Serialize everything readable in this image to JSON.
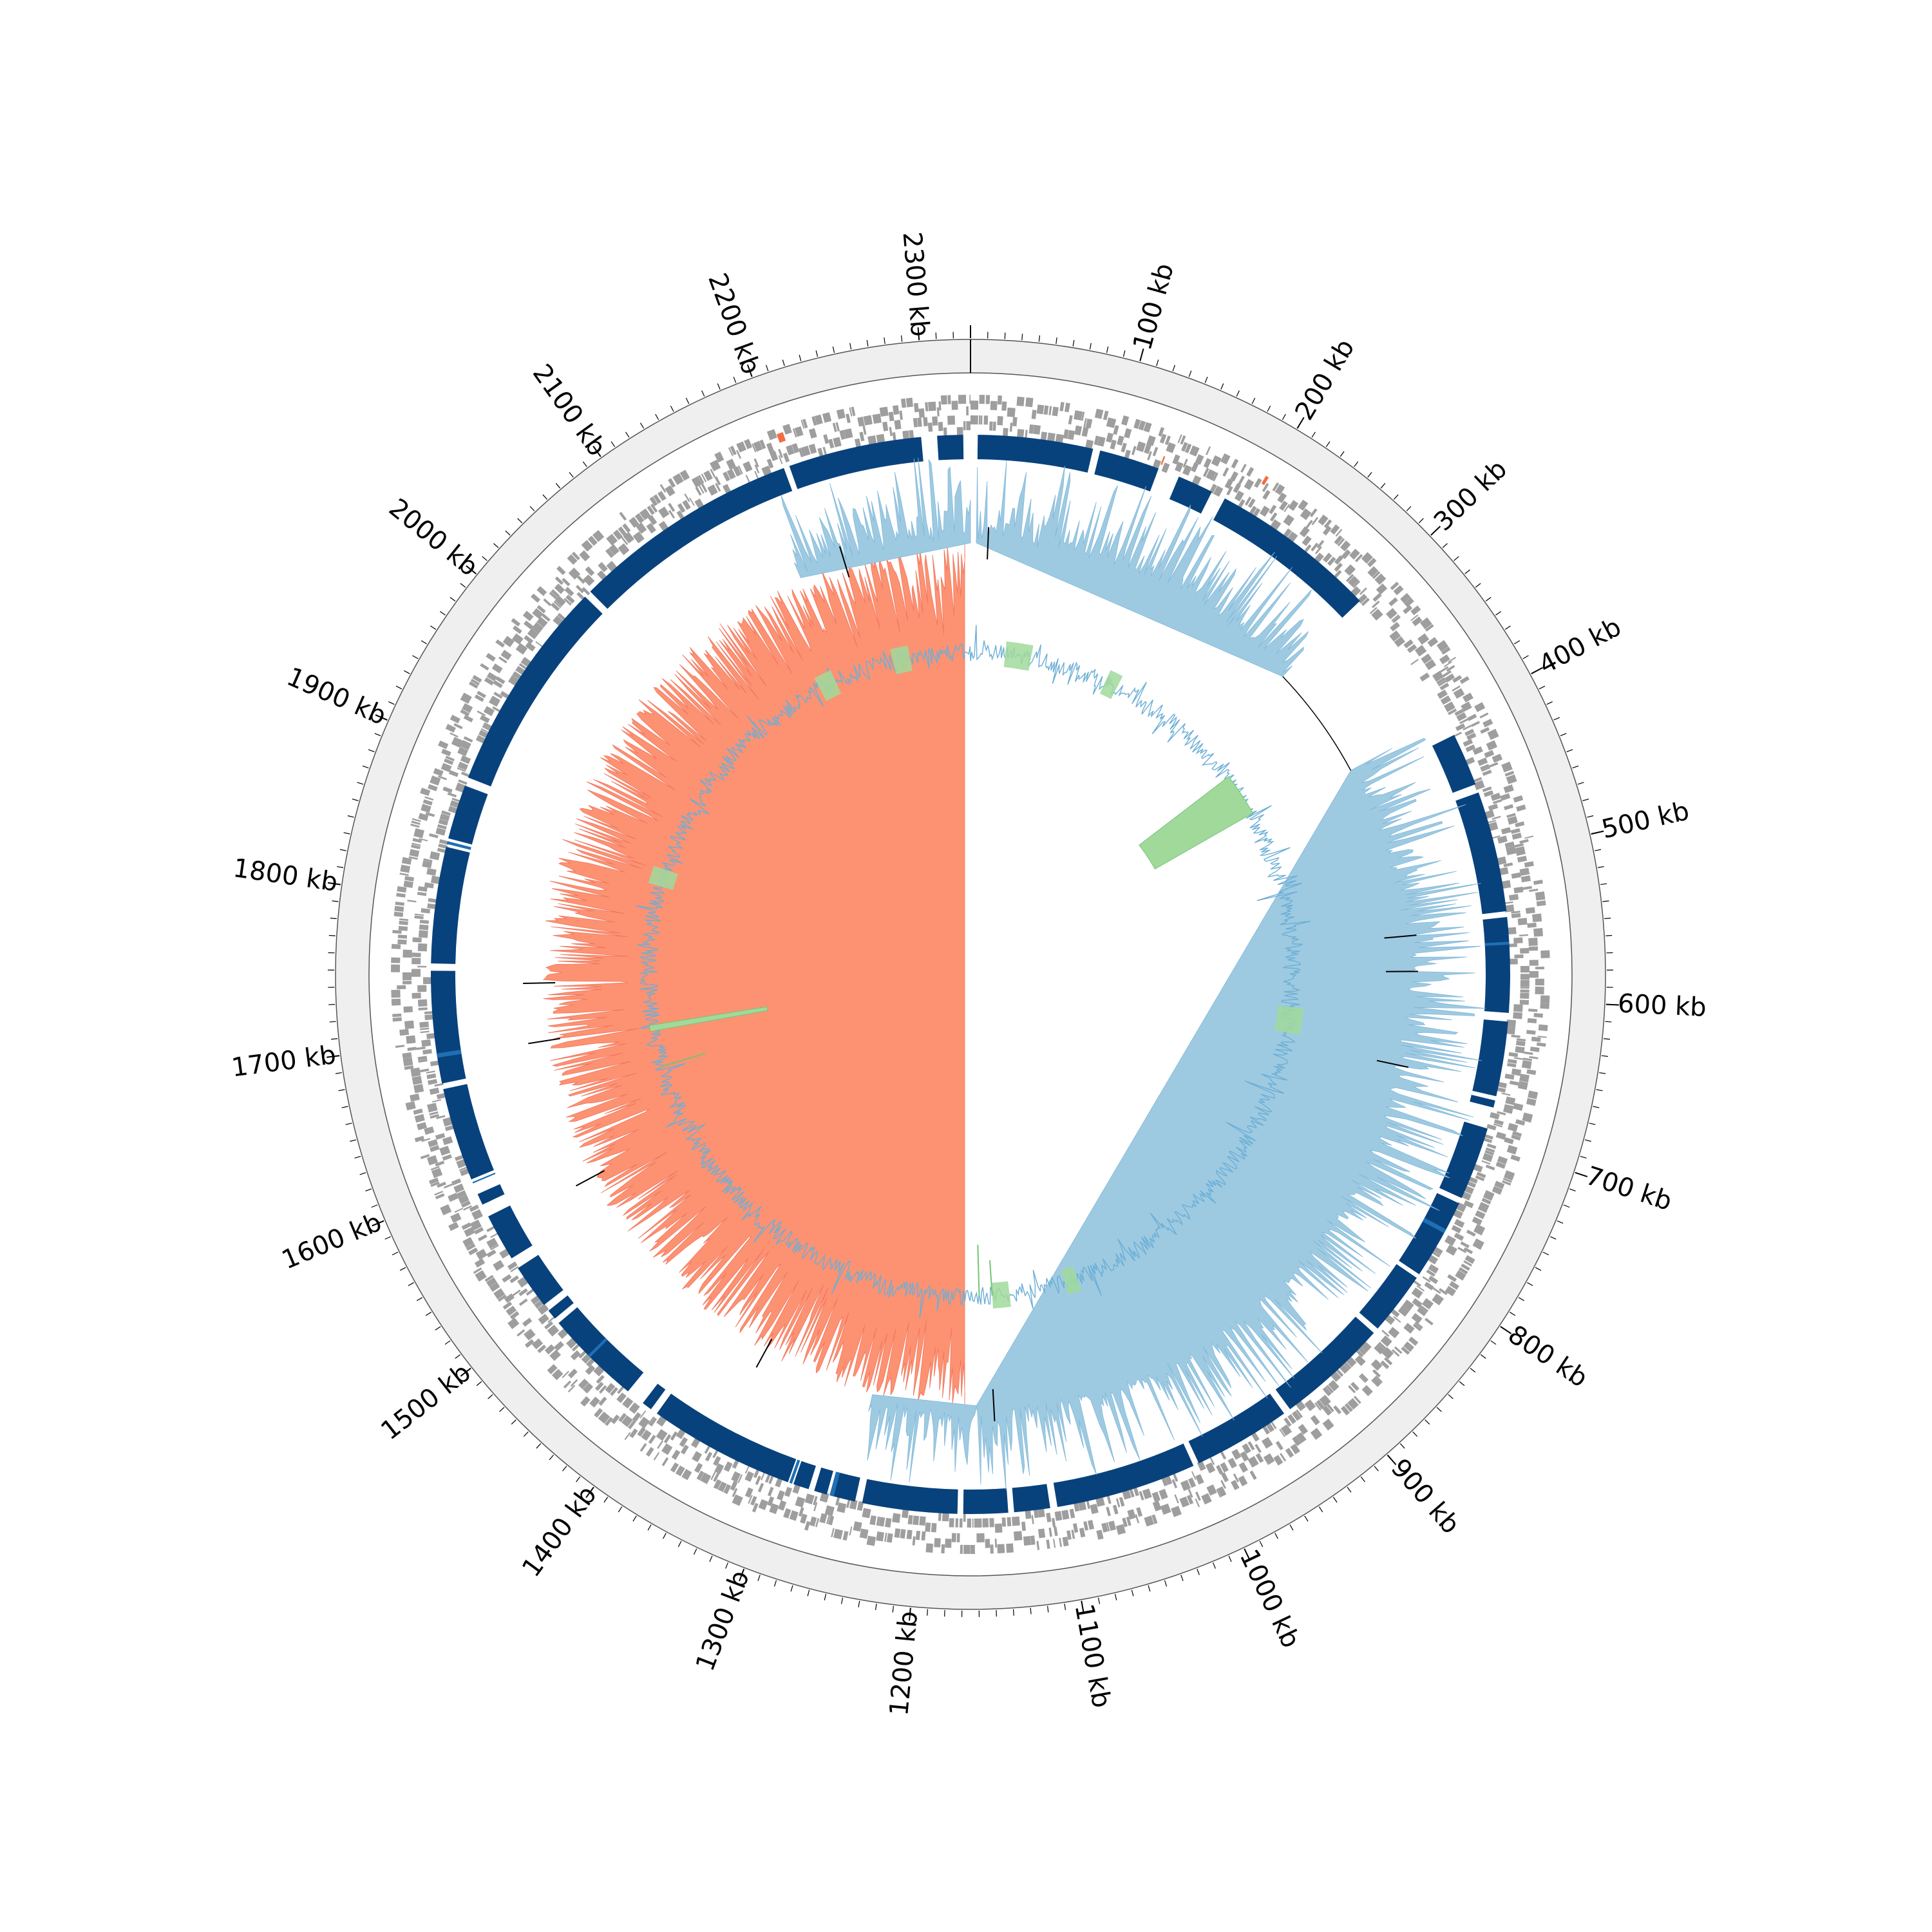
{
  "chart_data": {
    "type": "circular-genome-map",
    "title": "",
    "genome_length_kb": 2330,
    "tick_labels": [
      "100 kb",
      "200 kb",
      "300 kb",
      "400 kb",
      "500 kb",
      "600 kb",
      "700 kb",
      "800 kb",
      "900 kb",
      "1000 kb",
      "1100 kb",
      "1200 kb",
      "1300 kb",
      "1400 kb",
      "1500 kb",
      "1600 kb",
      "1700 kb",
      "1800 kb",
      "1900 kb",
      "2000 kb",
      "2100 kb",
      "2200 kb",
      "2300 kb"
    ],
    "tick_positions_kb": [
      100,
      200,
      300,
      400,
      500,
      600,
      700,
      800,
      900,
      1000,
      1100,
      1200,
      1300,
      1400,
      1500,
      1600,
      1700,
      1800,
      1900,
      2000,
      2100,
      2200,
      2300
    ],
    "colors": {
      "ring_fill": "#efefef",
      "ring_stroke": "#555555",
      "genes": "#9e9e9e",
      "genes_highlight": "#f46d43",
      "contigs": "#08427d",
      "contig_highlight": "#1f6fb4",
      "gc_skew_positive": "#9ecae1",
      "gc_skew_negative": "#fc9272",
      "gc_content_base": "#9ecae1",
      "gc_content_high": "#a1d99b",
      "mark": "#000000"
    },
    "contig_blocks_kb": [
      [
        2307,
        2325
      ],
      [
        5,
        85
      ],
      [
        90,
        132
      ],
      [
        147,
        172
      ],
      [
        182,
        299
      ],
      [
        412,
        449
      ],
      [
        455,
        539
      ],
      [
        543,
        609
      ],
      [
        615,
        667
      ],
      [
        670,
        675
      ],
      [
        690,
        741
      ],
      [
        745,
        801
      ],
      [
        804,
        848
      ],
      [
        852,
        930
      ],
      [
        935,
        1003
      ],
      [
        1007,
        1105
      ],
      [
        1110,
        1135
      ],
      [
        1139,
        1170
      ],
      [
        1174,
        1240
      ],
      [
        1245,
        1262
      ],
      [
        1265,
        1274
      ],
      [
        1278,
        1289
      ],
      [
        1293,
        1395
      ],
      [
        1400,
        1407
      ],
      [
        1420,
        1487
      ],
      [
        1491,
        1498
      ],
      [
        1503,
        1534
      ],
      [
        1542,
        1575
      ],
      [
        1584,
        1592
      ],
      [
        1603,
        1668
      ],
      [
        1672,
        1750
      ],
      [
        1755,
        1836
      ],
      [
        1842,
        1880
      ],
      [
        1886,
        2035
      ],
      [
        2040,
        2199
      ],
      [
        2203,
        2296
      ]
    ],
    "tracks": [
      "genome ring with kb scale",
      "genes (two strands)",
      "contigs",
      "GC skew",
      "GC content"
    ]
  }
}
